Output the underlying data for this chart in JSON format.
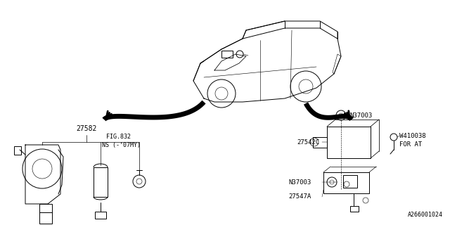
{
  "bg_color": "#ffffff",
  "line_color": "#000000",
  "fig_width": 6.4,
  "fig_height": 3.2,
  "dpi": 100,
  "footer": "A266001024",
  "label_27582": "27582",
  "label_fig832": "FIG.832",
  "label_ns07my": "NS (-’07MY)",
  "label_27542c": "27542C",
  "label_n37003": "N37003",
  "label_w410038": "W410038",
  "label_for_at": "FOR AT",
  "label_27547a": "27547A"
}
